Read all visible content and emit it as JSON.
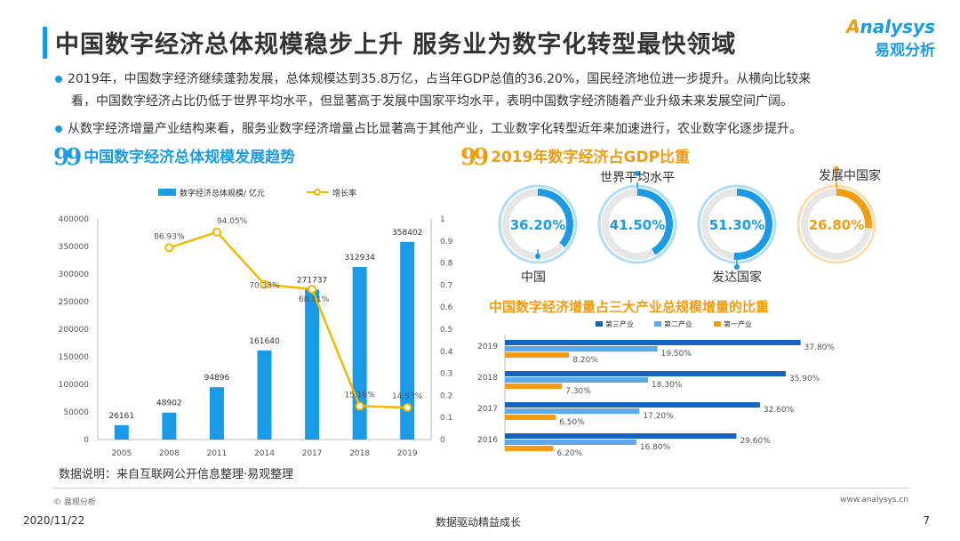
{
  "title": "中国数字经济总体规模稳步上升 服务业为数字化转型最快领域",
  "logo": {
    "en_prefix": "A",
    "en_rest": "nalysys",
    "cn": "易观分析"
  },
  "bullets": [
    "2019年，中国数字经济继续蓬勃发展，总体规模达到35.8万亿，占当年GDP总值的36.20%，国民经济地位进一步提升。从横向比较来",
    "看，中国数字经济占比仍低于世界平均水平，但显著高于发展中国家平均水平，表明中国数字经济随着产业升级未来发展空间广阔。",
    "从数字经济增量产业结构来看，服务业数字经济增量占比显著高于其他产业，工业数字化转型近年来加速进行，农业数字化逐步提升。"
  ],
  "section_left": {
    "quote": "99",
    "title": "中国数字经济总体规模发展趋势"
  },
  "section_right": {
    "quote": "99",
    "title": "2019年数字经济占GDP比重"
  },
  "footnote": "数据说明：来自互联网公开信息整理·易观整理",
  "footer": {
    "copyright": "© 易观分析",
    "site": "www.analysys.cn",
    "date": "2020/11/22",
    "slogan": "数据驱动精益成长",
    "page": "7"
  },
  "colors": {
    "blue": "#1a9be8",
    "orange": "#f39c12",
    "dark_blue": "#1565c0",
    "light_blue": "#5da9e9",
    "gold": "#f5b800"
  },
  "chart_data": [
    {
      "type": "bar",
      "title": "中国数字经济总体规模发展趋势",
      "categories": [
        "2005",
        "2008",
        "2011",
        "2014",
        "2017",
        "2018",
        "2019"
      ],
      "series": [
        {
          "name": "数字经济总体规模/ 亿元",
          "type": "bar",
          "axis": "left",
          "values": [
            26161,
            48902,
            94896,
            161640,
            271737,
            312934,
            358402
          ],
          "labels": [
            "26161",
            "48902",
            "94896",
            "161640",
            "271737",
            "312934",
            "358402"
          ]
        },
        {
          "name": "增长率",
          "type": "line",
          "axis": "right",
          "x": [
            "2008",
            "2011",
            "2014",
            "2017",
            "2018",
            "2019"
          ],
          "values": [
            0.8693,
            0.9405,
            0.7033,
            0.6811,
            0.1516,
            0.1453
          ],
          "labels": [
            "86.93%",
            "94.05%",
            "70.33%",
            "68.11%",
            "15.16%",
            "14.53%"
          ]
        }
      ],
      "ylim_left": [
        0,
        400000
      ],
      "yticks_left": [
        "0",
        "50000",
        "100000",
        "150000",
        "200000",
        "250000",
        "300000",
        "350000",
        "400000"
      ],
      "ylim_right": [
        0,
        1
      ],
      "yticks_right": [
        "0",
        "0.1",
        "0.2",
        "0.3",
        "0.4",
        "0.5",
        "0.6",
        "0.7",
        "0.8",
        "0.9",
        "1"
      ],
      "legend": "top"
    },
    {
      "type": "pie",
      "title": "2019年数字经济占GDP比重",
      "items": [
        {
          "name": "中国",
          "value": 36.2,
          "label": "36.20%"
        },
        {
          "name": "世界平均水平",
          "value": 41.5,
          "label": "41.50%"
        },
        {
          "name": "发达国家",
          "value": 51.3,
          "label": "51.30%"
        },
        {
          "name": "发展中国家",
          "value": 26.8,
          "label": "26.80%"
        }
      ]
    },
    {
      "type": "bar",
      "orientation": "horizontal",
      "title": "中国数字经济增量占三大产业总规模增量的比重",
      "categories": [
        "2019",
        "2018",
        "2017",
        "2016"
      ],
      "series": [
        {
          "name": "第三产业",
          "values": [
            37.8,
            35.9,
            32.6,
            29.6
          ],
          "labels": [
            "37.80%",
            "35.90%",
            "32.60%",
            "29.60%"
          ]
        },
        {
          "name": "第二产业",
          "values": [
            19.5,
            18.3,
            17.2,
            16.8
          ],
          "labels": [
            "19.50%",
            "18.30%",
            "17.20%",
            "16.80%"
          ]
        },
        {
          "name": "第一产业",
          "values": [
            8.2,
            7.3,
            6.5,
            6.2
          ],
          "labels": [
            "8.20%",
            "7.30%",
            "6.50%",
            "6.20%"
          ]
        }
      ],
      "legend": "top"
    }
  ]
}
